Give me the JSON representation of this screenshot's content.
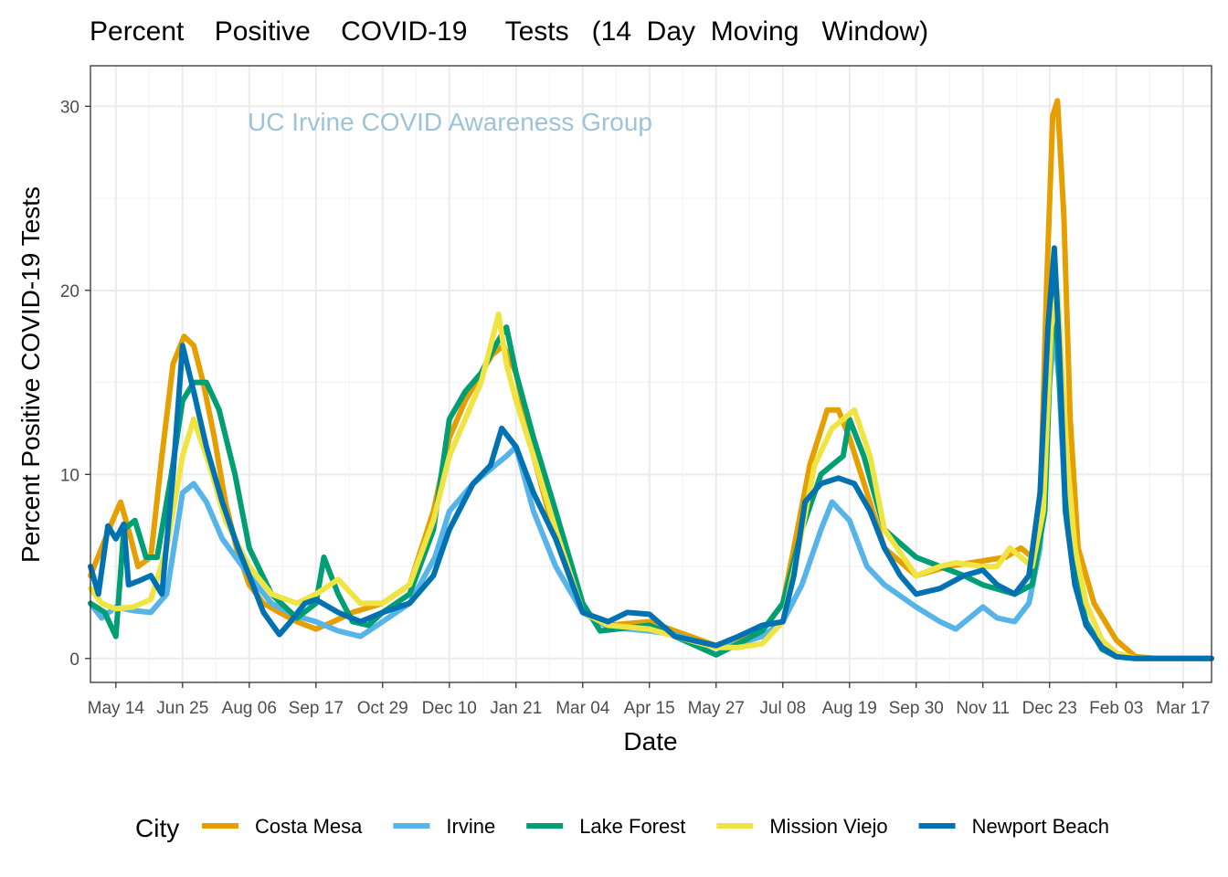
{
  "chart_data": {
    "type": "line",
    "title": "Percent    Positive    COVID-19     Tests   (14  Day  Moving   Window)",
    "annotation": "UC Irvine COVID Awareness Group",
    "xlabel": "Date",
    "ylabel": "Percent Positive COVID-19 Tests",
    "x_start": "2020-04-28",
    "x_end": "2022-04-04",
    "ylim": [
      -1.3,
      32.2
    ],
    "y_ticks": [
      0,
      10,
      20,
      30
    ],
    "y_tick_labels": [
      "0",
      "10",
      "20",
      "30"
    ],
    "x_ticks": [
      "2020-05-14",
      "2020-06-25",
      "2020-08-06",
      "2020-09-17",
      "2020-10-29",
      "2020-12-10",
      "2021-01-21",
      "2021-03-04",
      "2021-04-15",
      "2021-05-27",
      "2021-07-08",
      "2021-08-19",
      "2021-09-30",
      "2021-11-11",
      "2021-12-23",
      "2022-02-03",
      "2022-03-17"
    ],
    "x_tick_labels": [
      "May 14",
      "Jun 25",
      "Aug 06",
      "Sep 17",
      "Oct 29",
      "Dec 10",
      "Jan 21",
      "Mar 04",
      "Apr 15",
      "May 27",
      "Jul 08",
      "Aug 19",
      "Sep 30",
      "Nov 11",
      "Dec 23",
      "Feb 03",
      "Mar 17"
    ],
    "grid": true,
    "legend": {
      "title": "City",
      "position": "bottom"
    },
    "series": [
      {
        "name": "Costa Mesa",
        "color": "#E69F00",
        "x": [
          "2020-04-28",
          "2020-05-05",
          "2020-05-12",
          "2020-05-17",
          "2020-05-22",
          "2020-05-28",
          "2020-06-05",
          "2020-06-12",
          "2020-06-19",
          "2020-06-26",
          "2020-07-02",
          "2020-07-08",
          "2020-07-15",
          "2020-07-22",
          "2020-07-29",
          "2020-08-06",
          "2020-08-15",
          "2020-08-25",
          "2020-09-05",
          "2020-09-17",
          "2020-09-28",
          "2020-10-10",
          "2020-10-29",
          "2020-11-15",
          "2020-11-30",
          "2020-12-10",
          "2020-12-20",
          "2020-12-30",
          "2021-01-06",
          "2021-01-13",
          "2021-01-21",
          "2021-02-01",
          "2021-02-15",
          "2021-03-04",
          "2021-03-20",
          "2021-04-15",
          "2021-05-01",
          "2021-05-27",
          "2021-06-10",
          "2021-06-25",
          "2021-07-08",
          "2021-07-15",
          "2021-07-25",
          "2021-08-05",
          "2021-08-12",
          "2021-08-19",
          "2021-08-30",
          "2021-09-10",
          "2021-09-30",
          "2021-10-20",
          "2021-11-11",
          "2021-11-25",
          "2021-12-05",
          "2021-12-12",
          "2021-12-17",
          "2021-12-21",
          "2021-12-25",
          "2021-12-28",
          "2022-01-01",
          "2022-01-05",
          "2022-01-10",
          "2022-01-20",
          "2022-02-03",
          "2022-02-15",
          "2022-03-01",
          "2022-03-17",
          "2022-04-04"
        ],
        "values": [
          4.5,
          6.0,
          7.5,
          8.5,
          7.0,
          5.0,
          5.5,
          11.0,
          16.0,
          17.5,
          17.0,
          15.0,
          12.0,
          8.5,
          6.0,
          4.0,
          3.0,
          2.5,
          2.0,
          1.6,
          2.0,
          2.5,
          3.0,
          4.0,
          8.0,
          12.0,
          14.0,
          15.5,
          16.5,
          17.0,
          15.5,
          11.0,
          6.5,
          2.5,
          1.8,
          2.0,
          1.5,
          0.7,
          0.9,
          1.5,
          3.0,
          6.0,
          10.5,
          13.5,
          13.5,
          12.0,
          9.0,
          6.0,
          4.5,
          5.0,
          5.3,
          5.5,
          6.0,
          5.5,
          8.0,
          20.0,
          29.5,
          30.3,
          24.0,
          13.0,
          6.0,
          3.0,
          1.0,
          0.1,
          0.0,
          0.0,
          0.0
        ]
      },
      {
        "name": "Irvine",
        "color": "#56B4E9",
        "x": [
          "2020-04-28",
          "2020-05-05",
          "2020-05-14",
          "2020-05-25",
          "2020-06-05",
          "2020-06-15",
          "2020-06-25",
          "2020-07-02",
          "2020-07-10",
          "2020-07-20",
          "2020-08-06",
          "2020-08-20",
          "2020-09-05",
          "2020-09-17",
          "2020-10-01",
          "2020-10-15",
          "2020-10-29",
          "2020-11-15",
          "2020-12-01",
          "2020-12-10",
          "2020-12-25",
          "2021-01-08",
          "2021-01-15",
          "2021-01-21",
          "2021-02-01",
          "2021-02-15",
          "2021-03-04",
          "2021-03-20",
          "2021-04-15",
          "2021-05-01",
          "2021-05-27",
          "2021-06-10",
          "2021-06-25",
          "2021-07-08",
          "2021-07-20",
          "2021-08-01",
          "2021-08-08",
          "2021-08-19",
          "2021-08-30",
          "2021-09-10",
          "2021-09-30",
          "2021-10-15",
          "2021-10-25",
          "2021-11-11",
          "2021-11-20",
          "2021-12-01",
          "2021-12-10",
          "2021-12-17",
          "2021-12-22",
          "2021-12-26",
          "2021-12-29",
          "2022-01-02",
          "2022-01-08",
          "2022-01-15",
          "2022-01-25",
          "2022-02-03",
          "2022-02-15",
          "2022-03-01",
          "2022-03-17",
          "2022-04-04"
        ],
        "values": [
          3.0,
          2.2,
          2.8,
          2.6,
          2.5,
          3.5,
          9.0,
          9.5,
          8.5,
          6.5,
          4.5,
          3.0,
          2.3,
          2.0,
          1.5,
          1.2,
          2.0,
          3.0,
          5.5,
          8.0,
          9.5,
          10.5,
          11.0,
          11.5,
          8.0,
          5.0,
          2.5,
          1.7,
          1.5,
          1.3,
          0.6,
          0.8,
          1.2,
          2.0,
          4.0,
          7.0,
          8.5,
          7.5,
          5.0,
          4.0,
          2.8,
          2.0,
          1.6,
          2.8,
          2.2,
          2.0,
          3.0,
          6.0,
          14.0,
          18.0,
          15.0,
          8.0,
          4.0,
          2.0,
          0.6,
          0.2,
          0.0,
          0.0,
          0.0,
          0.0
        ]
      },
      {
        "name": "Lake Forest",
        "color": "#009E73",
        "x": [
          "2020-04-28",
          "2020-05-07",
          "2020-05-14",
          "2020-05-19",
          "2020-05-26",
          "2020-06-02",
          "2020-06-09",
          "2020-06-18",
          "2020-06-25",
          "2020-07-02",
          "2020-07-10",
          "2020-07-18",
          "2020-07-28",
          "2020-08-06",
          "2020-08-20",
          "2020-09-05",
          "2020-09-17",
          "2020-09-22",
          "2020-10-01",
          "2020-10-10",
          "2020-10-20",
          "2020-10-29",
          "2020-11-15",
          "2020-11-30",
          "2020-12-10",
          "2020-12-20",
          "2020-12-30",
          "2021-01-08",
          "2021-01-15",
          "2021-01-21",
          "2021-02-01",
          "2021-02-15",
          "2021-03-04",
          "2021-03-15",
          "2021-04-15",
          "2021-05-01",
          "2021-05-27",
          "2021-06-10",
          "2021-06-25",
          "2021-07-08",
          "2021-07-20",
          "2021-08-01",
          "2021-08-08",
          "2021-08-15",
          "2021-08-19",
          "2021-08-28",
          "2021-09-10",
          "2021-09-30",
          "2021-10-15",
          "2021-10-30",
          "2021-11-11",
          "2021-12-01",
          "2021-12-12",
          "2021-12-20",
          "2021-12-25",
          "2021-12-28",
          "2022-01-02",
          "2022-01-08",
          "2022-01-15",
          "2022-01-25",
          "2022-02-03",
          "2022-02-15",
          "2022-03-01",
          "2022-03-17",
          "2022-04-04"
        ],
        "values": [
          3.0,
          2.5,
          1.2,
          7.0,
          7.5,
          5.5,
          5.5,
          10.0,
          14.0,
          15.0,
          15.0,
          13.5,
          10.0,
          6.0,
          3.5,
          2.2,
          3.0,
          5.5,
          3.5,
          2.0,
          1.8,
          2.5,
          3.5,
          7.0,
          13.0,
          14.5,
          15.5,
          17.0,
          18.0,
          15.5,
          12.0,
          8.0,
          3.0,
          1.5,
          1.8,
          1.2,
          0.2,
          0.8,
          1.5,
          3.0,
          7.0,
          10.0,
          10.5,
          11.0,
          13.0,
          11.0,
          7.0,
          5.5,
          5.0,
          4.5,
          4.0,
          3.5,
          4.0,
          8.0,
          20.0,
          17.0,
          9.0,
          4.5,
          2.0,
          0.5,
          0.1,
          0.0,
          0.0,
          0.0,
          0.0
        ]
      },
      {
        "name": "Mission Viejo",
        "color": "#F0E442",
        "x": [
          "2020-04-28",
          "2020-05-05",
          "2020-05-14",
          "2020-05-25",
          "2020-06-05",
          "2020-06-15",
          "2020-06-25",
          "2020-07-02",
          "2020-07-12",
          "2020-07-22",
          "2020-08-06",
          "2020-08-20",
          "2020-09-05",
          "2020-09-17",
          "2020-10-01",
          "2020-10-15",
          "2020-10-29",
          "2020-11-15",
          "2020-11-30",
          "2020-12-10",
          "2020-12-20",
          "2020-12-30",
          "2021-01-05",
          "2021-01-10",
          "2021-01-15",
          "2021-01-21",
          "2021-02-01",
          "2021-02-15",
          "2021-03-04",
          "2021-03-20",
          "2021-04-15",
          "2021-05-01",
          "2021-05-27",
          "2021-06-10",
          "2021-06-25",
          "2021-07-08",
          "2021-07-18",
          "2021-07-28",
          "2021-08-08",
          "2021-08-15",
          "2021-08-22",
          "2021-09-01",
          "2021-09-10",
          "2021-09-30",
          "2021-10-15",
          "2021-10-25",
          "2021-11-11",
          "2021-11-20",
          "2021-11-28",
          "2021-12-05",
          "2021-12-12",
          "2021-12-19",
          "2021-12-24",
          "2021-12-28",
          "2022-01-03",
          "2022-01-08",
          "2022-01-15",
          "2022-01-25",
          "2022-02-03",
          "2022-02-15",
          "2022-03-01",
          "2022-03-17",
          "2022-04-04"
        ],
        "values": [
          3.8,
          3.0,
          2.7,
          2.8,
          3.2,
          6.0,
          11.0,
          13.0,
          10.5,
          7.5,
          5.0,
          3.5,
          3.0,
          3.5,
          4.3,
          3.0,
          3.0,
          4.0,
          7.5,
          11.0,
          13.0,
          15.0,
          17.0,
          18.7,
          16.0,
          14.0,
          11.0,
          7.0,
          2.5,
          1.8,
          1.6,
          1.2,
          0.6,
          0.6,
          0.8,
          2.0,
          6.0,
          10.5,
          12.5,
          13.0,
          13.5,
          11.0,
          7.0,
          4.5,
          5.0,
          5.2,
          5.0,
          5.0,
          6.0,
          5.5,
          5.0,
          8.0,
          18.0,
          20.0,
          11.0,
          6.0,
          3.0,
          1.0,
          0.3,
          0.0,
          0.0,
          0.0,
          0.0
        ]
      },
      {
        "name": "Newport Beach",
        "color": "#0072B2",
        "x": [
          "2020-04-28",
          "2020-05-03",
          "2020-05-09",
          "2020-05-14",
          "2020-05-19",
          "2020-05-22",
          "2020-05-28",
          "2020-06-05",
          "2020-06-12",
          "2020-06-19",
          "2020-06-25",
          "2020-07-02",
          "2020-07-10",
          "2020-07-20",
          "2020-07-30",
          "2020-08-06",
          "2020-08-15",
          "2020-08-25",
          "2020-09-01",
          "2020-09-10",
          "2020-09-17",
          "2020-10-01",
          "2020-10-15",
          "2020-10-29",
          "2020-11-15",
          "2020-11-30",
          "2020-12-10",
          "2020-12-25",
          "2021-01-05",
          "2021-01-12",
          "2021-01-21",
          "2021-02-01",
          "2021-02-15",
          "2021-03-04",
          "2021-03-20",
          "2021-04-01",
          "2021-04-15",
          "2021-05-01",
          "2021-05-27",
          "2021-06-10",
          "2021-06-25",
          "2021-07-08",
          "2021-07-15",
          "2021-07-22",
          "2021-08-01",
          "2021-08-12",
          "2021-08-22",
          "2021-09-01",
          "2021-09-10",
          "2021-09-20",
          "2021-09-30",
          "2021-10-15",
          "2021-10-30",
          "2021-11-11",
          "2021-11-20",
          "2021-12-01",
          "2021-12-10",
          "2021-12-17",
          "2021-12-22",
          "2021-12-26",
          "2021-12-29",
          "2022-01-02",
          "2022-01-08",
          "2022-01-15",
          "2022-01-25",
          "2022-02-03",
          "2022-02-15",
          "2022-03-01",
          "2022-03-17",
          "2022-04-04"
        ],
        "values": [
          5.0,
          3.5,
          7.2,
          6.5,
          7.3,
          4.0,
          4.2,
          4.5,
          3.5,
          10.0,
          17.0,
          14.5,
          11.5,
          8.5,
          6.0,
          4.5,
          2.5,
          1.3,
          2.0,
          3.0,
          3.2,
          2.5,
          2.0,
          2.5,
          3.0,
          4.5,
          7.0,
          9.5,
          10.5,
          12.5,
          11.5,
          9.0,
          6.5,
          2.5,
          2.0,
          2.5,
          2.4,
          1.2,
          0.7,
          1.2,
          1.8,
          2.0,
          4.5,
          8.5,
          9.5,
          9.8,
          9.5,
          8.0,
          6.0,
          4.5,
          3.5,
          3.8,
          4.5,
          4.8,
          4.0,
          3.5,
          4.5,
          9.0,
          18.0,
          22.3,
          17.0,
          8.0,
          4.0,
          1.8,
          0.6,
          0.1,
          0.0,
          0.0,
          0.0,
          0.0
        ]
      }
    ]
  }
}
